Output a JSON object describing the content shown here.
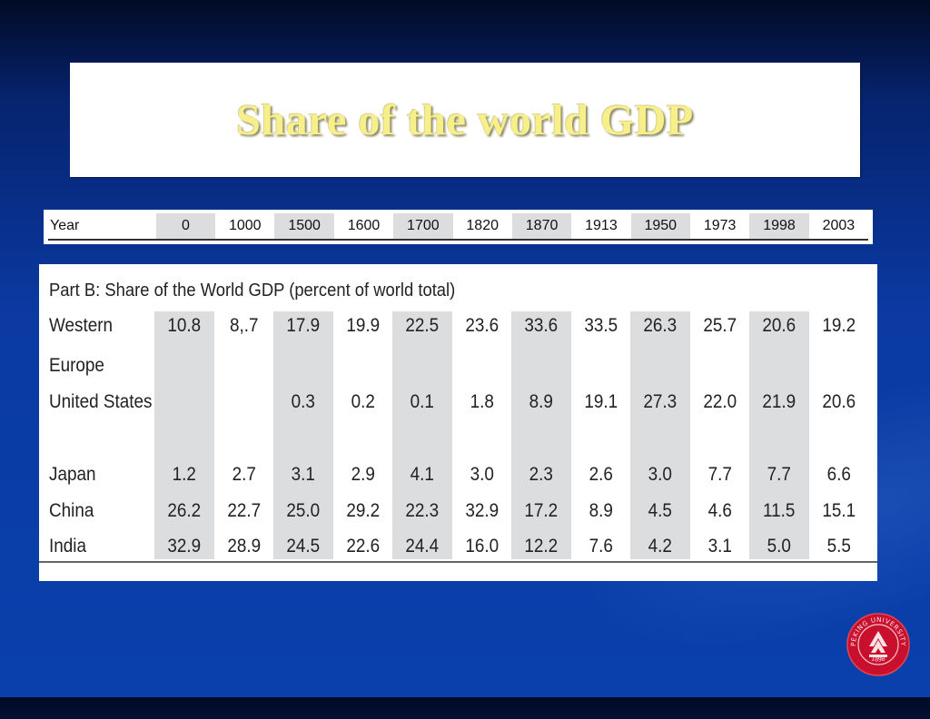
{
  "slide": {
    "title": "Share of the world GDP"
  },
  "year_table": {
    "header_label": "Year",
    "years": [
      "0",
      "1000",
      "1500",
      "1600",
      "1700",
      "1820",
      "1870",
      "1913",
      "1950",
      "1973",
      "1998",
      "2003"
    ]
  },
  "gdp_table": {
    "title": "Part B: Share of the World GDP (percent of world total)",
    "rows": [
      {
        "label": "Western",
        "label2": "Europe",
        "values": [
          "10.8",
          "8,.7",
          "17.9",
          "19.9",
          "22.5",
          "23.6",
          "33.6",
          "33.5",
          "26.3",
          "25.7",
          "20.6",
          "19.2"
        ]
      },
      {
        "label": "United States",
        "values": [
          "",
          "",
          "0.3",
          "0.2",
          "0.1",
          "1.8",
          "8.9",
          "19.1",
          "27.3",
          "22.0",
          "21.9",
          "20.6"
        ]
      },
      {
        "label": "Japan",
        "values": [
          "1.2",
          "2.7",
          "3.1",
          "2.9",
          "4.1",
          "3.0",
          "2.3",
          "2.6",
          "3.0",
          "7.7",
          "7.7",
          "6.6"
        ]
      },
      {
        "label": "China",
        "values": [
          "26.2",
          "22.7",
          "25.0",
          "29.2",
          "22.3",
          "32.9",
          "17.2",
          "8.9",
          "4.5",
          "4.6",
          "11.5",
          "15.1"
        ]
      },
      {
        "label": "India",
        "values": [
          "32.9",
          "28.9",
          "24.5",
          "22.6",
          "24.4",
          "16.0",
          "12.2",
          "7.6",
          "4.2",
          "3.1",
          "5.0",
          "5.5"
        ]
      }
    ]
  },
  "logo": {
    "text": "PEKING UNIVERSITY",
    "year": "1898",
    "color": "#d42a2a"
  }
}
